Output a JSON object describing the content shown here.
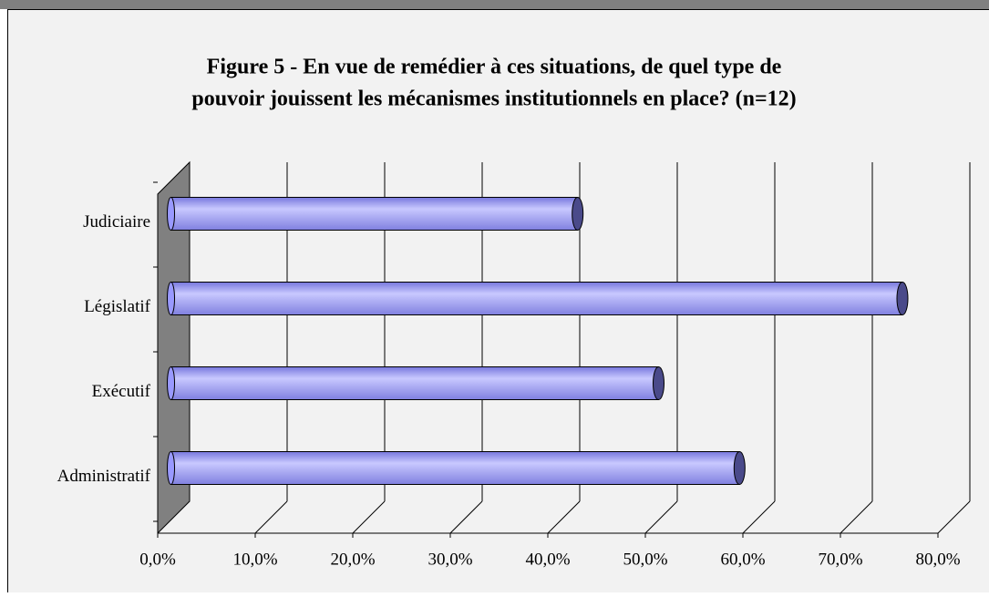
{
  "chart_data": {
    "type": "bar",
    "title": "Figure 5 - En vue de remédier à ces situations, de quel type de",
    "subtitle": "pouvoir jouissent les mécanismes institutionnels en place? (n=12)",
    "categories": [
      "Judiciaire",
      "Législatif",
      "Exécutif",
      "Administratif"
    ],
    "values": [
      41.7,
      75,
      50,
      58.3
    ],
    "color": "#9999ff",
    "xlim": [
      0,
      80
    ],
    "xticks": [
      {
        "value": 0,
        "label": "0,0%"
      },
      {
        "value": 10,
        "label": "10,0%"
      },
      {
        "value": 20,
        "label": "20,0%"
      },
      {
        "value": 30,
        "label": "30,0%"
      },
      {
        "value": 40,
        "label": "40,0%"
      },
      {
        "value": 50,
        "label": "50,0%"
      },
      {
        "value": 60,
        "label": "60,0%"
      },
      {
        "value": 70,
        "label": "70,0%"
      },
      {
        "value": 80,
        "label": "80,0%"
      }
    ],
    "grid": true
  }
}
